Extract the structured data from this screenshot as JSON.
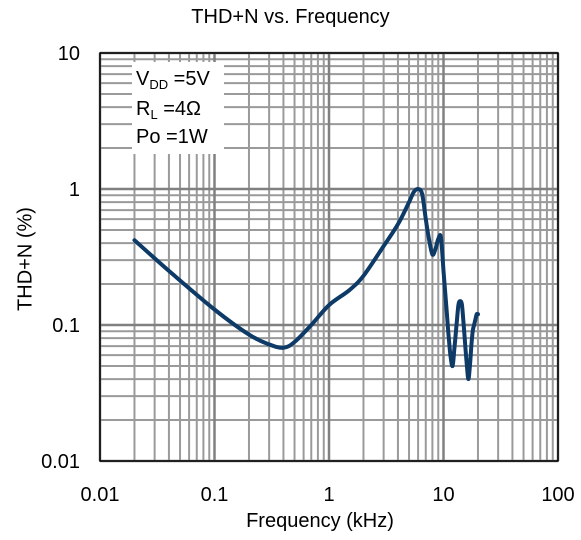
{
  "chart_data": {
    "type": "line",
    "title": "THD+N vs. Frequency",
    "xlabel": "Frequency (kHz)",
    "ylabel": "THD+N (%)",
    "xscale": "log",
    "yscale": "log",
    "xlim": [
      0.01,
      100
    ],
    "ylim": [
      0.01,
      10
    ],
    "xticks": [
      {
        "value": 0.01,
        "label": "0.01"
      },
      {
        "value": 0.1,
        "label": "0.1"
      },
      {
        "value": 1,
        "label": "1"
      },
      {
        "value": 10,
        "label": "10"
      },
      {
        "value": 100,
        "label": "100"
      }
    ],
    "yticks": [
      {
        "value": 0.01,
        "label": "0.01"
      },
      {
        "value": 0.1,
        "label": "0.1"
      },
      {
        "value": 1,
        "label": "1"
      },
      {
        "value": 10,
        "label": "10"
      }
    ],
    "grid": true,
    "line_color": "#0d3a66",
    "conditions": [
      {
        "symbol": "V",
        "sub": "DD",
        "rest": " =5V"
      },
      {
        "symbol": "R",
        "sub": "L",
        "rest": " =4Ω"
      },
      {
        "symbol": "Po",
        "sub": "",
        "rest": " =1W"
      }
    ],
    "series": [
      {
        "x": [
          0.02,
          0.04,
          0.1,
          0.2,
          0.3,
          0.4,
          0.5,
          0.7,
          1,
          1.5,
          2,
          3,
          4,
          5,
          5.5,
          6,
          6.5,
          7,
          7.5,
          8,
          8.5,
          9,
          9.5,
          10,
          10.5,
          11,
          11.5,
          12,
          12.5,
          13,
          13.5,
          14,
          14.5,
          15,
          15.5,
          16,
          16.5,
          17,
          17.5,
          18,
          18.5,
          19,
          19.5,
          20
        ],
        "y": [
          0.42,
          0.25,
          0.13,
          0.085,
          0.072,
          0.068,
          0.075,
          0.1,
          0.14,
          0.18,
          0.23,
          0.38,
          0.55,
          0.8,
          0.95,
          1.0,
          0.92,
          0.6,
          0.42,
          0.33,
          0.36,
          0.43,
          0.44,
          0.25,
          0.15,
          0.09,
          0.06,
          0.05,
          0.07,
          0.1,
          0.14,
          0.15,
          0.14,
          0.1,
          0.07,
          0.05,
          0.04,
          0.05,
          0.07,
          0.09,
          0.1,
          0.11,
          0.12,
          0.12
        ]
      }
    ]
  }
}
